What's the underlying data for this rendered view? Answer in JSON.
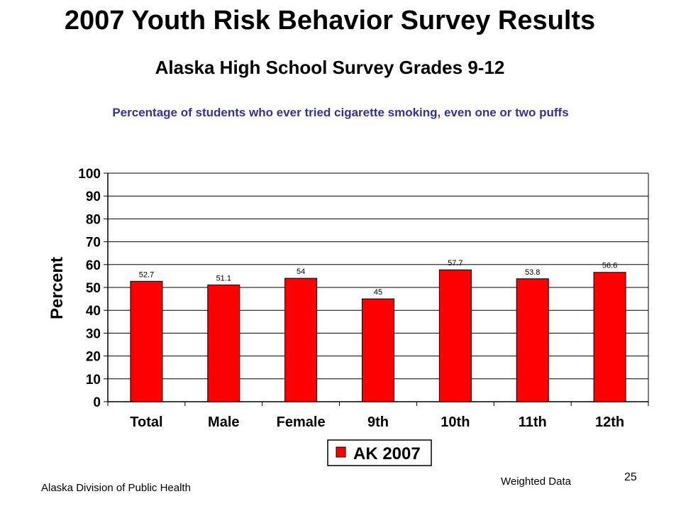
{
  "header": {
    "title": "2007 Youth Risk Behavior Survey Results",
    "subtitle": "Alaska High School Survey Grades 9-12"
  },
  "footer": {
    "source": "Alaska Division of Public Health",
    "note": "Weighted Data",
    "page_number": "25"
  },
  "chart_data": {
    "type": "bar",
    "title": "Percentage of students who ever tried cigarette smoking, even one or two puffs",
    "xlabel": "",
    "ylabel": "Percent",
    "categories": [
      "Total",
      "Male",
      "Female",
      "9th",
      "10th",
      "11th",
      "12th"
    ],
    "series": [
      {
        "name": "AK 2007",
        "values": [
          52.7,
          51.1,
          54,
          45,
          57.7,
          53.8,
          56.6
        ],
        "color": "#ff0000"
      }
    ],
    "data_labels": [
      "52.7",
      "51.1",
      "54",
      "45",
      "57.7",
      "53.8",
      "56.6"
    ],
    "ylim": [
      0,
      100
    ],
    "yticks": [
      0,
      10,
      20,
      30,
      40,
      50,
      60,
      70,
      80,
      90,
      100
    ],
    "grid": true,
    "legend_position": "bottom"
  }
}
